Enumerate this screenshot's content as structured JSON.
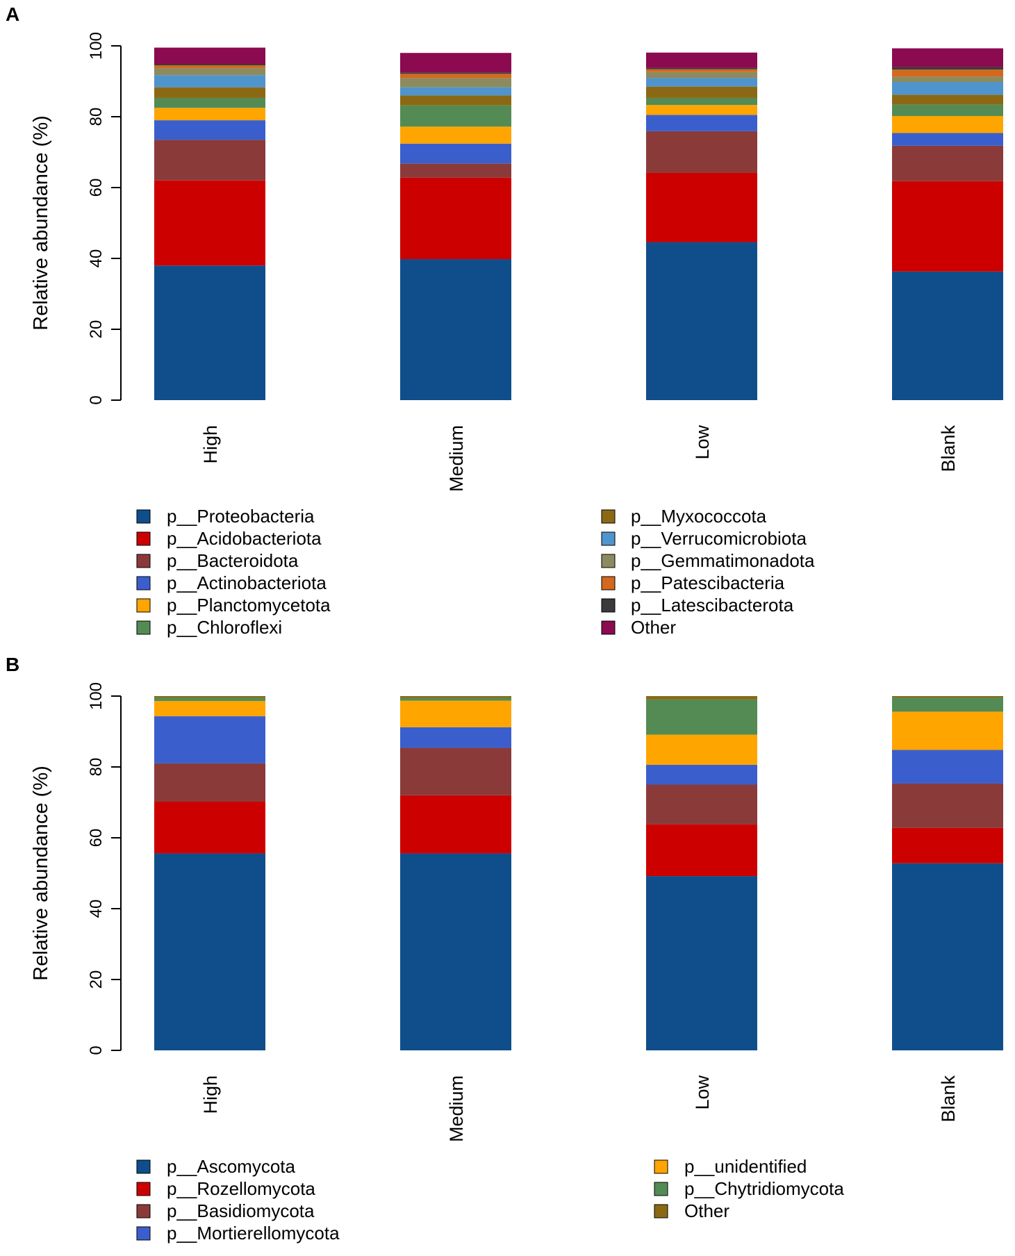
{
  "chart_data": [
    {
      "panel_label": "A",
      "type": "bar",
      "stacked": true,
      "ylabel": "Relative abundance (%)",
      "xlabel": "",
      "ylim": [
        0,
        100
      ],
      "yticks": [
        0,
        20,
        40,
        60,
        80,
        100
      ],
      "categories": [
        "High",
        "Medium",
        "Low",
        "Blank"
      ],
      "legend_columns": 2,
      "legend_rows_per_column": 6,
      "series": [
        {
          "name": "p__Proteobacteria",
          "color": "#104E8B",
          "values": [
            38.0,
            39.8,
            44.6,
            36.3
          ]
        },
        {
          "name": "p__Acidobacteriota",
          "color": "#CD0000",
          "values": [
            24.0,
            23.0,
            19.6,
            25.5
          ]
        },
        {
          "name": "p__Bacteroidota",
          "color": "#8B3A3A",
          "values": [
            11.5,
            4.0,
            11.7,
            10.0
          ]
        },
        {
          "name": "p__Actinobacteriota",
          "color": "#3A5FCD",
          "values": [
            5.5,
            5.6,
            4.6,
            3.6
          ]
        },
        {
          "name": "p__Planctomycetota",
          "color": "#FFA500",
          "values": [
            3.5,
            4.8,
            2.8,
            4.8
          ]
        },
        {
          "name": "p__Chloroflexi",
          "color": "#548B54",
          "values": [
            2.8,
            6.0,
            2.0,
            3.2
          ]
        },
        {
          "name": "p__Myxococcota",
          "color": "#8B6914",
          "values": [
            3.0,
            2.8,
            3.2,
            2.8
          ]
        },
        {
          "name": "p__Verrucomicrobiota",
          "color": "#4F94CD",
          "values": [
            3.4,
            2.3,
            2.4,
            3.6
          ]
        },
        {
          "name": "p__Gemmatimonadota",
          "color": "#8B8B5F",
          "values": [
            2.0,
            2.6,
            1.7,
            1.5
          ]
        },
        {
          "name": "p__Patescibacteria",
          "color": "#D2691E",
          "values": [
            0.8,
            1.2,
            0.8,
            2.0
          ]
        },
        {
          "name": "p__Latescibacterota",
          "color": "#3A3A3A",
          "values": [
            0.4,
            0.4,
            0.4,
            0.7
          ]
        },
        {
          "name": "Other",
          "color": "#8B0A50",
          "values": [
            4.6,
            5.5,
            4.3,
            5.3
          ]
        }
      ]
    },
    {
      "panel_label": "B",
      "type": "bar",
      "stacked": true,
      "ylabel": "Relative abundance (%)",
      "xlabel": "",
      "ylim": [
        0,
        100
      ],
      "yticks": [
        0,
        20,
        40,
        60,
        80,
        100
      ],
      "categories": [
        "High",
        "Medium",
        "Low",
        "Blank"
      ],
      "legend_columns": 2,
      "legend_rows_per_column": 4,
      "series": [
        {
          "name": "p__Ascomycota",
          "color": "#104E8B",
          "values": [
            55.6,
            55.6,
            49.2,
            52.8
          ]
        },
        {
          "name": "p__Rozellomycota",
          "color": "#CD0000",
          "values": [
            14.6,
            16.4,
            14.6,
            10.0
          ]
        },
        {
          "name": "p__Basidiomycota",
          "color": "#8B3A3A",
          "values": [
            10.8,
            13.4,
            11.2,
            12.5
          ]
        },
        {
          "name": "p__Mortierellomycota",
          "color": "#3A5FCD",
          "values": [
            13.3,
            5.8,
            5.6,
            9.5
          ]
        },
        {
          "name": "p__unidentified",
          "color": "#FFA500",
          "values": [
            4.3,
            7.5,
            8.5,
            10.8
          ]
        },
        {
          "name": "p__Chytridiomycota",
          "color": "#548B54",
          "values": [
            1.0,
            0.8,
            10.0,
            4.0
          ]
        },
        {
          "name": "Other",
          "color": "#8B6914",
          "values": [
            0.4,
            0.5,
            0.9,
            0.4
          ]
        }
      ]
    }
  ]
}
